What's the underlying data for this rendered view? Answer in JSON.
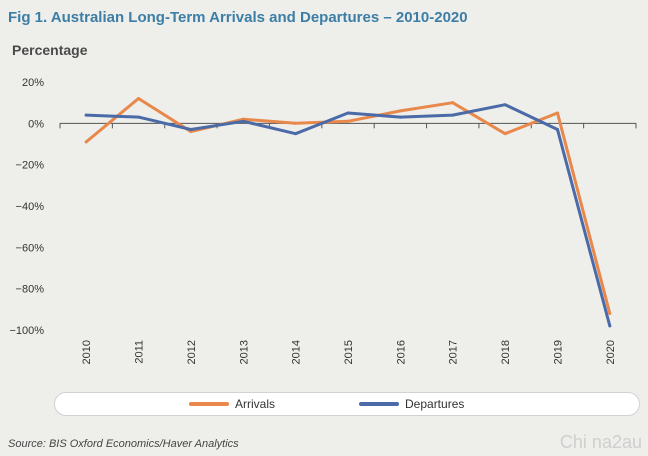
{
  "chart_data": {
    "type": "line",
    "title": "Fig 1. Australian Long-Term Arrivals and Departures – 2010-2020",
    "ylabel": "Percentage",
    "xlabel": "",
    "categories": [
      "2010",
      "2011",
      "2012",
      "2013",
      "2014",
      "2015",
      "2016",
      "2017",
      "2018",
      "2019",
      "2020"
    ],
    "series": [
      {
        "name": "Arrivals",
        "color": "#e8884a",
        "values": [
          -9,
          12,
          -4,
          2,
          0,
          1,
          6,
          10,
          -5,
          5,
          -92
        ]
      },
      {
        "name": "Departures",
        "color": "#4a6aa8",
        "values": [
          4,
          3,
          -3,
          1,
          -5,
          5,
          3,
          4,
          9,
          -3,
          -98
        ]
      }
    ],
    "yticks": [
      20,
      0,
      -20,
      -40,
      -60,
      -80,
      -100
    ],
    "ytick_labels": [
      "20%",
      "0%",
      "−20%",
      "−40%",
      "−60%",
      "−80%",
      "−100%"
    ],
    "ylim": [
      -100,
      20
    ],
    "grid": false,
    "legend": "bottom"
  },
  "source": "Source: BIS Oxford Economics/Haver Analytics",
  "watermark": "Chi na2au"
}
